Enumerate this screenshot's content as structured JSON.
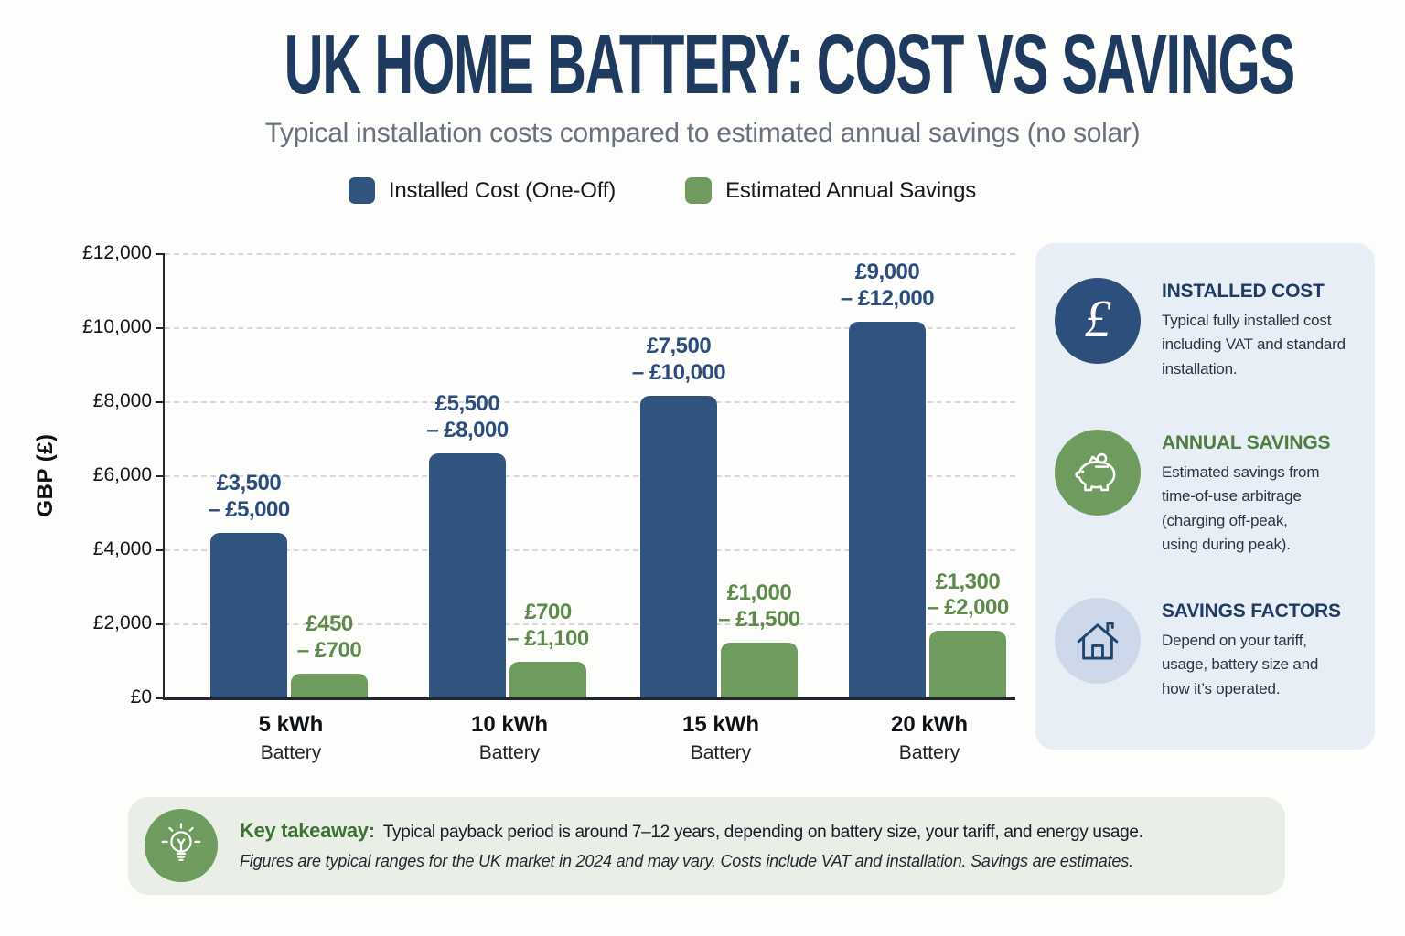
{
  "page": {
    "title": "UK HOME BATTERY: COST VS SAVINGS",
    "subtitle": "Typical installation costs compared to estimated annual savings (no solar)",
    "background": "#fdfdfb"
  },
  "legend": [
    {
      "label": "Installed Cost (One-Off)",
      "color": "#31547f"
    },
    {
      "label": "Estimated Annual Savings",
      "color": "#6f9b5e"
    }
  ],
  "chart_data": {
    "type": "bar",
    "title": "UK HOME BATTERY: COST VS SAVINGS",
    "categories": [
      "5 kWh",
      "10 kWh",
      "15 kWh",
      "20 kWh"
    ],
    "category_sub": "Battery",
    "xlabel": "",
    "ylabel": "GBP (£)",
    "ylim": [
      0,
      12000
    ],
    "grid": "horizontal-dashed",
    "legend_position": "top",
    "yticks": [
      {
        "value": 0,
        "label": "£0"
      },
      {
        "value": 2000,
        "label": "£2,000"
      },
      {
        "value": 4000,
        "label": "£4,000"
      },
      {
        "value": 6000,
        "label": "£6,000"
      },
      {
        "value": 8000,
        "label": "£8,000"
      },
      {
        "value": 10000,
        "label": "£10,000"
      },
      {
        "value": 12000,
        "label": "£12,000"
      }
    ],
    "series": [
      {
        "name": "Installed Cost (One-Off)",
        "color": "#31547f",
        "label_color": "#2a4d7d",
        "values": [
          4450,
          6600,
          8150,
          10150
        ],
        "range_labels": [
          "£3,500\n– £5,000",
          "£5,500\n– £8,000",
          "£7,500\n– £10,000",
          "£9,000\n– £12,000"
        ]
      },
      {
        "name": "Estimated Annual Savings",
        "color": "#6f9b5e",
        "label_color": "#5c8a4b",
        "values": [
          650,
          975,
          1480,
          1800
        ],
        "range_labels": [
          "£450\n– £700",
          "£700\n– £1,100",
          "£1,000\n– £1,500",
          "£1,300\n– £2,000"
        ]
      }
    ]
  },
  "panel": {
    "items": [
      {
        "icon": "pound-sign-icon",
        "icon_bg": "#2d4f7c",
        "heading": "INSTALLED COST",
        "heading_color": "#1d3b63",
        "body": "Typical fully installed cost\nincluding VAT and standard\ninstallation."
      },
      {
        "icon": "piggy-bank-icon",
        "icon_bg": "#6f9b5e",
        "heading": "ANNUAL SAVINGS",
        "heading_color": "#4e7d3e",
        "body": "Estimated savings from\ntime-of-use arbitrage\n(charging off-peak,\nusing during peak)."
      },
      {
        "icon": "house-icon",
        "icon_bg": "#cdd9eb",
        "heading": "SAVINGS FACTORS",
        "heading_color": "#1d3b63",
        "body": "Depend on your tariff,\nusage, battery size and\nhow it’s operated."
      }
    ]
  },
  "takeaway": {
    "heading": "Key takeaway:",
    "text": "Typical payback period is around 7–12 years, depending on battery size, your tariff, and energy usage.",
    "footnote": "Figures are typical ranges for the UK market in 2024 and may vary. Costs include VAT and installation. Savings are estimates."
  }
}
